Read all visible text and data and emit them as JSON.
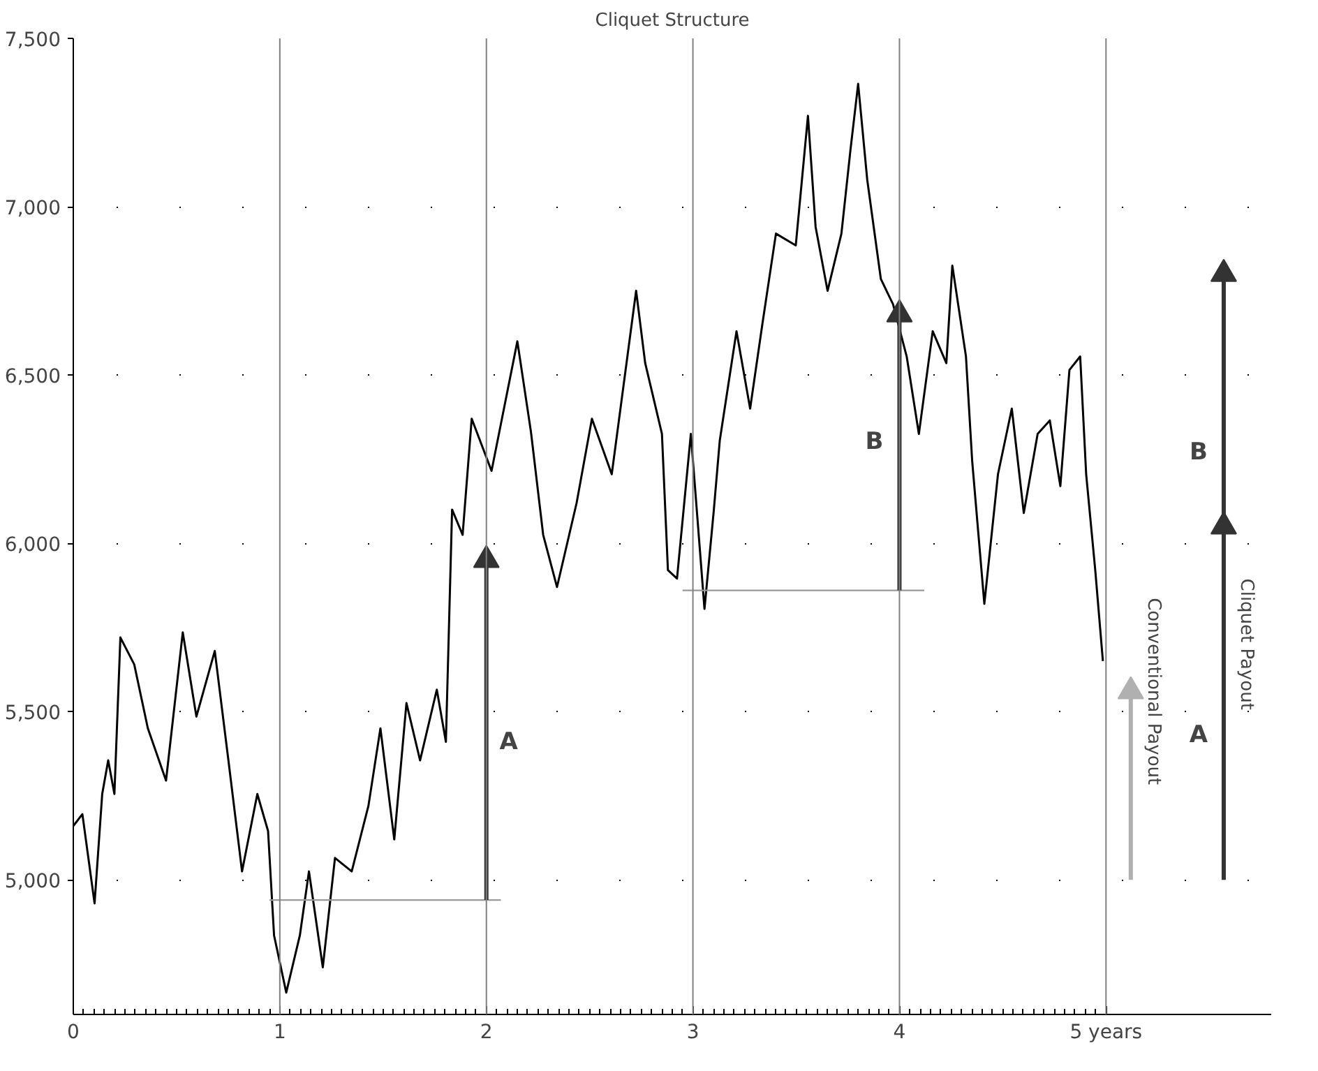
{
  "chart_data": {
    "type": "line",
    "title": "Cliquet Structure",
    "xlim": [
      0,
      5.8
    ],
    "ylim": [
      4600,
      7500
    ],
    "xticks": [
      0,
      1,
      2,
      3,
      4,
      {
        "value": 5,
        "label": "5 years"
      }
    ],
    "yticks": [
      {
        "value": 5000,
        "label": "5,000"
      },
      {
        "value": 5500,
        "label": "5,500"
      },
      {
        "value": 6000,
        "label": "6,000"
      },
      {
        "value": 6500,
        "label": "6,500"
      },
      {
        "value": 7000,
        "label": "7,000"
      },
      {
        "value": 7500,
        "label": "7,500"
      }
    ],
    "grid": "y",
    "ref_lines": [
      {
        "axis": "x",
        "value": 1,
        "color": "#808080"
      },
      {
        "axis": "x",
        "value": 2,
        "color": "#808080"
      },
      {
        "axis": "x",
        "value": 3,
        "color": "#808080"
      },
      {
        "axis": "x",
        "value": 4,
        "color": "#808080"
      },
      {
        "axis": "x",
        "value": 5,
        "color": "#808080"
      }
    ],
    "series": [
      {
        "color": "#000000",
        "x": [
          0.0,
          0.044,
          0.103,
          0.14,
          0.169,
          0.199,
          0.228,
          0.295,
          0.361,
          0.449,
          0.53,
          0.596,
          0.685,
          0.751,
          0.817,
          0.891,
          0.943,
          0.972,
          1.031,
          1.097,
          1.141,
          1.208,
          1.267,
          1.348,
          1.429,
          1.487,
          1.554,
          1.613,
          1.679,
          1.76,
          1.804,
          1.834,
          1.885,
          1.929,
          2.025,
          2.15,
          2.216,
          2.275,
          2.342,
          2.437,
          2.511,
          2.607,
          2.725,
          2.769,
          2.85,
          2.879,
          2.923,
          2.99,
          3.056,
          3.1,
          3.13,
          3.211,
          3.277,
          3.336,
          3.402,
          3.498,
          3.557,
          3.594,
          3.652,
          3.719,
          3.763,
          3.8,
          3.844,
          3.91,
          3.969,
          4.035,
          4.094,
          4.161,
          4.227,
          4.256,
          4.322,
          4.352,
          4.411,
          4.477,
          4.544,
          4.602,
          4.669,
          4.728,
          4.779,
          4.823,
          4.875,
          4.904,
          4.948,
          4.985
        ],
        "values": [
          5160,
          5195,
          4930,
          5255,
          5355,
          5255,
          5720,
          5640,
          5450,
          5295,
          5735,
          5485,
          5680,
          5355,
          5025,
          5255,
          5145,
          4835,
          4665,
          4835,
          5025,
          4740,
          5065,
          5025,
          5220,
          5450,
          5120,
          5525,
          5355,
          5565,
          5410,
          6100,
          6025,
          6370,
          6215,
          6600,
          6330,
          6025,
          5870,
          6120,
          6370,
          6205,
          6750,
          6535,
          6325,
          5920,
          5895,
          6325,
          5805,
          6090,
          6305,
          6630,
          6400,
          6650,
          6920,
          6885,
          7270,
          6940,
          6750,
          6920,
          7170,
          7365,
          7080,
          6785,
          6710,
          6555,
          6325,
          6630,
          6535,
          6825,
          6555,
          6245,
          5820,
          6205,
          6400,
          6090,
          6325,
          6365,
          6170,
          6515,
          6555,
          6205,
          5920,
          5650
        ]
      },
      {
        "color": "#999999",
        "x": [
          0.95,
          2.07
        ],
        "values": [
          4940,
          4940
        ]
      },
      {
        "color": "#999999",
        "x": [
          2.95,
          4.12
        ],
        "values": [
          5860,
          5860
        ]
      },
      {
        "color": "#333333",
        "x": [
          2,
          2
        ],
        "values": [
          4940,
          5950
        ],
        "marker": "triangle"
      },
      {
        "color": "#333333",
        "x": [
          4,
          4
        ],
        "values": [
          5860,
          6680
        ],
        "marker": "triangle"
      },
      {
        "color": "#b0b0b0",
        "x": [
          5.12,
          5.12
        ],
        "values": [
          5000,
          5560
        ],
        "marker": "triangle"
      },
      {
        "color": "#333333",
        "x": [
          5.57,
          5.57
        ],
        "values": [
          5000,
          6050
        ],
        "marker": "triangle"
      },
      {
        "color": "#333333",
        "x": [
          5.57,
          5.57
        ],
        "values": [
          6050,
          6800
        ],
        "marker": "triangle"
      }
    ],
    "annotations": [
      {
        "text": "A",
        "x": 2,
        "y": 5410
      },
      {
        "text": "B",
        "x": 4,
        "y": 6300
      },
      {
        "text": "A",
        "x": 5.57,
        "y": 5430
      },
      {
        "text": "B",
        "x": 5.57,
        "y": 6270
      },
      {
        "text": "Conventional Payout",
        "x": 5.12,
        "y": 5560
      },
      {
        "text": "Cliquet Payout",
        "x": 5.57,
        "y": 5700
      }
    ]
  }
}
